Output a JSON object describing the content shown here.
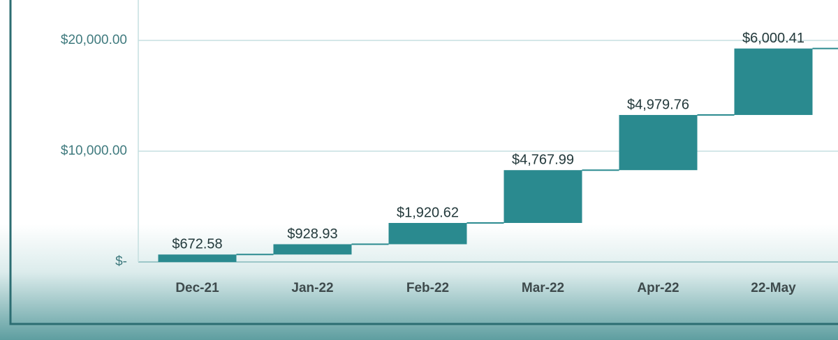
{
  "chart_data": {
    "type": "waterfall",
    "categories": [
      "Dec-21",
      "Jan-22",
      "Feb-22",
      "Mar-22",
      "Apr-22",
      "22-May"
    ],
    "values": [
      672.58,
      928.93,
      1920.62,
      4767.99,
      4979.76,
      6000.41
    ],
    "value_labels": [
      "$672.58",
      "$928.93",
      "$1,920.62",
      "$4,767.99",
      "$4,979.76",
      "$6,000.41"
    ],
    "color": "#2a8a8f",
    "ylim": [
      0,
      23650
    ],
    "yticks": [
      {
        "value": 0,
        "label": "$-"
      },
      {
        "value": 10000,
        "label": "$10,000.00"
      },
      {
        "value": 20000,
        "label": "$20,000.00"
      }
    ],
    "grid": true
  }
}
